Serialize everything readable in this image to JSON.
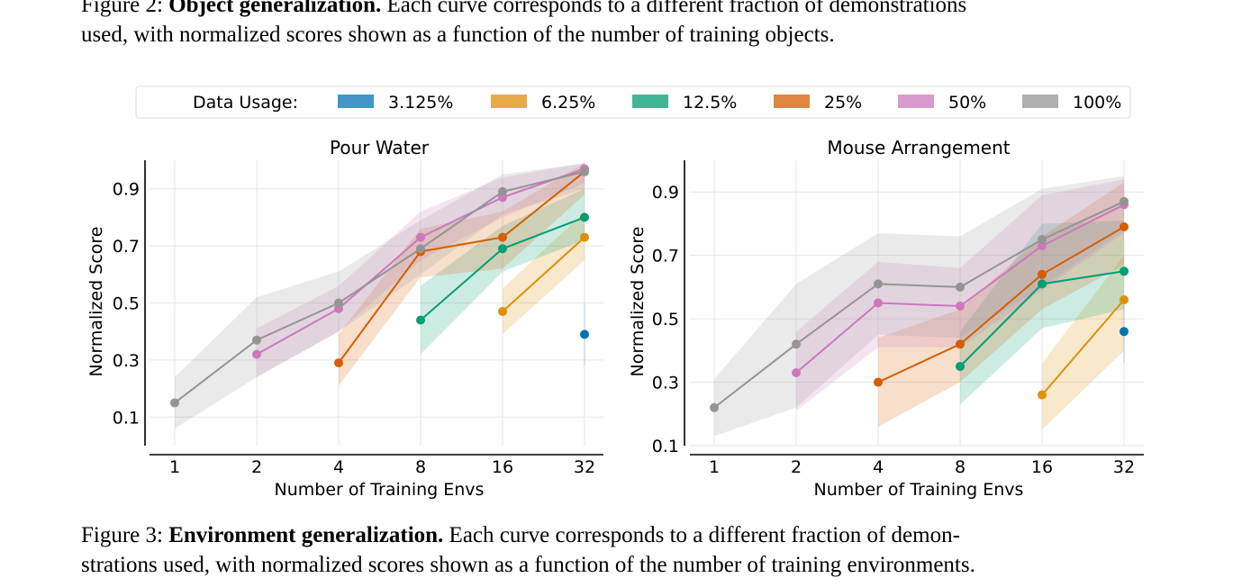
{
  "captions": {
    "top": {
      "prefix": "Figure 2: ",
      "title": "Object generalization.",
      "line1_rest": " Each curve corresponds to a different fraction of demonstrations",
      "line2": "used, with normalized scores shown as a function of the number of training objects."
    },
    "bottom": {
      "prefix": "Figure 3: ",
      "title": "Environment generalization.",
      "line1_rest": " Each curve corresponds to a different fraction of demon-",
      "line2": "strations used, with normalized scores shown as a function of the number of training environments."
    }
  },
  "legend": {
    "title": "Data Usage:",
    "entries": [
      {
        "label": "3.125%",
        "color": "#0173b2"
      },
      {
        "label": "6.25%",
        "color": "#de8f05"
      },
      {
        "label": "12.5%",
        "color": "#029e73"
      },
      {
        "label": "25%",
        "color": "#d55e00"
      },
      {
        "label": "50%",
        "color": "#cc78bc"
      },
      {
        "label": "100%",
        "color": "#949494"
      }
    ]
  },
  "chart_data": [
    {
      "type": "line",
      "title": "Pour Water",
      "xlabel": "Number of Training Envs",
      "ylabel": "Normalized Score",
      "x_ticks": [
        "1",
        "2",
        "4",
        "8",
        "16",
        "32"
      ],
      "y_ticks": [
        "0.1",
        "0.3",
        "0.5",
        "0.7",
        "0.9"
      ],
      "ylim": [
        0.0,
        1.0
      ],
      "grid": true,
      "series": [
        {
          "label": "3.125%",
          "color": "#0173b2",
          "x": [
            32
          ],
          "y": [
            0.39
          ],
          "low": [
            0.28
          ],
          "high": [
            0.5
          ]
        },
        {
          "label": "6.25%",
          "color": "#de8f05",
          "x": [
            16,
            32
          ],
          "y": [
            0.47,
            0.73
          ],
          "low": [
            0.39,
            0.65
          ],
          "high": [
            0.55,
            0.82
          ]
        },
        {
          "label": "12.5%",
          "color": "#029e73",
          "x": [
            8,
            16,
            32
          ],
          "y": [
            0.44,
            0.69,
            0.8
          ],
          "low": [
            0.32,
            0.61,
            0.72
          ],
          "high": [
            0.56,
            0.77,
            0.9
          ]
        },
        {
          "label": "25%",
          "color": "#d55e00",
          "x": [
            4,
            8,
            16,
            32
          ],
          "y": [
            0.29,
            0.68,
            0.73,
            0.96
          ],
          "low": [
            0.21,
            0.59,
            0.62,
            0.88
          ],
          "high": [
            0.39,
            0.76,
            0.82,
            0.99
          ]
        },
        {
          "label": "50%",
          "color": "#cc78bc",
          "x": [
            2,
            4,
            8,
            16,
            32
          ],
          "y": [
            0.32,
            0.48,
            0.73,
            0.87,
            0.97
          ],
          "low": [
            0.24,
            0.4,
            0.65,
            0.8,
            0.92
          ],
          "high": [
            0.41,
            0.56,
            0.82,
            0.94,
            0.99
          ]
        },
        {
          "label": "100%",
          "color": "#949494",
          "x": [
            1,
            2,
            4,
            8,
            16,
            32
          ],
          "y": [
            0.15,
            0.37,
            0.5,
            0.69,
            0.89,
            0.96
          ],
          "low": [
            0.06,
            0.24,
            0.4,
            0.6,
            0.81,
            0.9
          ],
          "high": [
            0.24,
            0.52,
            0.61,
            0.79,
            0.95,
            0.99
          ]
        }
      ]
    },
    {
      "type": "line",
      "title": "Mouse Arrangement",
      "xlabel": "Number of Training Envs",
      "ylabel": "Normalized Score",
      "x_ticks": [
        "1",
        "2",
        "4",
        "8",
        "16",
        "32"
      ],
      "y_ticks": [
        "0.1",
        "0.3",
        "0.5",
        "0.7",
        "0.9"
      ],
      "ylim": [
        0.1,
        1.0
      ],
      "grid": true,
      "series": [
        {
          "label": "3.125%",
          "color": "#0173b2",
          "x": [
            32
          ],
          "y": [
            0.46
          ],
          "low": [
            0.36
          ],
          "high": [
            0.56
          ]
        },
        {
          "label": "6.25%",
          "color": "#de8f05",
          "x": [
            16,
            32
          ],
          "y": [
            0.26,
            0.56
          ],
          "low": [
            0.15,
            0.4
          ],
          "high": [
            0.36,
            0.7
          ]
        },
        {
          "label": "12.5%",
          "color": "#029e73",
          "x": [
            8,
            16,
            32
          ],
          "y": [
            0.35,
            0.61,
            0.65
          ],
          "low": [
            0.23,
            0.47,
            0.53
          ],
          "high": [
            0.46,
            0.8,
            0.81
          ]
        },
        {
          "label": "25%",
          "color": "#d55e00",
          "x": [
            4,
            8,
            16,
            32
          ],
          "y": [
            0.3,
            0.42,
            0.64,
            0.79
          ],
          "low": [
            0.16,
            0.3,
            0.53,
            0.67
          ],
          "high": [
            0.44,
            0.53,
            0.76,
            0.93
          ]
        },
        {
          "label": "50%",
          "color": "#cc78bc",
          "x": [
            2,
            4,
            8,
            16,
            32
          ],
          "y": [
            0.33,
            0.55,
            0.54,
            0.73,
            0.86
          ],
          "low": [
            0.21,
            0.41,
            0.41,
            0.59,
            0.77
          ],
          "high": [
            0.46,
            0.68,
            0.66,
            0.89,
            0.94
          ]
        },
        {
          "label": "100%",
          "color": "#949494",
          "x": [
            1,
            2,
            4,
            8,
            16,
            32
          ],
          "y": [
            0.22,
            0.42,
            0.61,
            0.6,
            0.75,
            0.87
          ],
          "low": [
            0.13,
            0.22,
            0.45,
            0.44,
            0.6,
            0.78
          ],
          "high": [
            0.31,
            0.61,
            0.77,
            0.76,
            0.91,
            0.95
          ]
        }
      ]
    }
  ]
}
